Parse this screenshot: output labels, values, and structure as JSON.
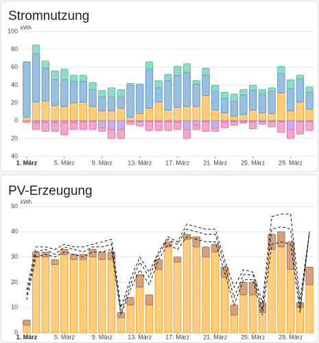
{
  "chart_data": [
    {
      "type": "bar",
      "stacked": true,
      "title": "Stromnutzung",
      "y_label": "kWh",
      "categories": [
        "1. März",
        null,
        null,
        null,
        "5. März",
        null,
        null,
        null,
        "9. März",
        null,
        null,
        null,
        "13. März",
        null,
        null,
        null,
        "17. März",
        null,
        null,
        null,
        "21. März",
        null,
        null,
        null,
        "25. März",
        null,
        null,
        null,
        "29. März",
        null,
        null
      ],
      "series": [
        {
          "color": "#ff9800",
          "fill": "#ffcc80",
          "values": [
            4,
            21,
            22,
            17,
            16,
            20,
            21,
            16,
            11,
            11,
            14,
            4,
            8,
            14,
            21,
            12,
            15,
            16,
            16,
            28,
            12,
            9,
            5,
            7,
            12,
            9,
            8,
            31,
            11,
            21,
            13
          ]
        },
        {
          "color": "#4d8fc8",
          "fill": "#98bfe0",
          "values": [
            62,
            54,
            37,
            29,
            30,
            24,
            23,
            19,
            16,
            16,
            13,
            36,
            33,
            44,
            16,
            33,
            36,
            38,
            25,
            23,
            21,
            16,
            17,
            22,
            22,
            21,
            25,
            22,
            25,
            26,
            19
          ]
        },
        {
          "color": "#4cb9a0",
          "fill": "#93d9c8",
          "values": [
            0,
            10,
            8,
            10,
            12,
            7,
            7,
            8,
            7,
            10,
            8,
            2,
            0,
            8,
            8,
            7,
            10,
            10,
            4,
            8,
            7,
            7,
            8,
            6,
            6,
            5,
            4,
            8,
            10,
            4,
            6
          ]
        },
        {
          "color": "#9b6fd6",
          "fill": "#c9aeea",
          "values": [
            0,
            -2,
            -2,
            -2,
            -2,
            -2,
            -1,
            -1,
            -8,
            -10,
            -10,
            -1,
            -1,
            -1,
            -1,
            -1,
            -2,
            -10,
            -5,
            -1,
            -8,
            -2,
            -1,
            -1,
            -1,
            -1,
            -1,
            -1,
            -10,
            -1,
            -1
          ]
        },
        {
          "color": "#ee5d98",
          "fill": "#f7a8c8",
          "values": [
            -2,
            -8,
            -10,
            -10,
            -14,
            -8,
            -9,
            -9,
            -4,
            -10,
            -10,
            -3,
            -5,
            -10,
            -10,
            -10,
            -8,
            -10,
            -5,
            -11,
            -4,
            -6,
            -4,
            -2,
            -8,
            -3,
            -6,
            -12,
            -10,
            -14,
            -10
          ]
        }
      ],
      "ylim": [
        -40,
        100
      ],
      "yticks": [
        {
          "value": -40,
          "label": "40"
        },
        {
          "value": -20,
          "label": "20"
        },
        0,
        20,
        40,
        60,
        80,
        100
      ],
      "grid": true
    },
    {
      "type": "bar",
      "stacked": true,
      "title": "PV-Erzeugung",
      "y_label": "kWh",
      "categories": [
        "1. März",
        null,
        null,
        null,
        "5. März",
        null,
        null,
        null,
        "9. März",
        null,
        null,
        null,
        "13. März",
        null,
        null,
        null,
        "17. März",
        null,
        null,
        null,
        "21. März",
        null,
        null,
        null,
        "25. März",
        null,
        null,
        null,
        "29. März",
        null,
        null
      ],
      "series": [
        {
          "color": "#ff9800",
          "fill": "#ffcc80",
          "values": [
            3,
            30,
            30,
            27,
            31,
            29,
            29,
            30,
            29,
            29,
            6,
            11,
            18,
            11,
            25,
            34,
            28,
            37,
            34,
            30,
            32,
            22,
            7,
            15,
            15,
            8,
            33,
            34,
            25,
            10,
            19
          ]
        },
        {
          "color": "#a0603a",
          "fill": "#d4a27c",
          "values": [
            2,
            2,
            2,
            2,
            2,
            2,
            2,
            3,
            3,
            3,
            2,
            3,
            5,
            4,
            4,
            2,
            2,
            2,
            4,
            4,
            3,
            4,
            4,
            5,
            5,
            4,
            6,
            6,
            11,
            2,
            7
          ]
        },
        {
          "type": "line",
          "color": "#111111",
          "values": [
            17,
            34,
            34,
            33,
            35,
            34,
            34,
            35,
            36,
            37,
            10,
            21,
            30,
            24,
            32,
            38,
            36,
            43,
            42,
            41,
            41,
            29,
            18,
            25,
            24,
            12,
            46,
            47,
            47,
            13,
            40
          ]
        },
        {
          "type": "line",
          "color": "#111111",
          "values": [
            15,
            32,
            33,
            31,
            34,
            33,
            32,
            34,
            34,
            35,
            8,
            19,
            28,
            22,
            31,
            37,
            35,
            41,
            40,
            39,
            39,
            27,
            14,
            23,
            23,
            9,
            41,
            42,
            41,
            10,
            40
          ]
        },
        {
          "type": "line",
          "color": "#111111",
          "values": [
            13,
            30,
            31,
            30,
            32,
            31,
            30,
            32,
            32,
            33,
            7,
            17,
            25,
            19,
            29,
            35,
            33,
            38,
            37,
            36,
            36,
            24,
            11,
            21,
            21,
            7,
            35,
            36,
            35,
            8,
            40
          ]
        }
      ],
      "ylim": [
        0,
        50
      ],
      "yticks": [
        0,
        10,
        20,
        30,
        40,
        50
      ],
      "grid": true
    }
  ]
}
